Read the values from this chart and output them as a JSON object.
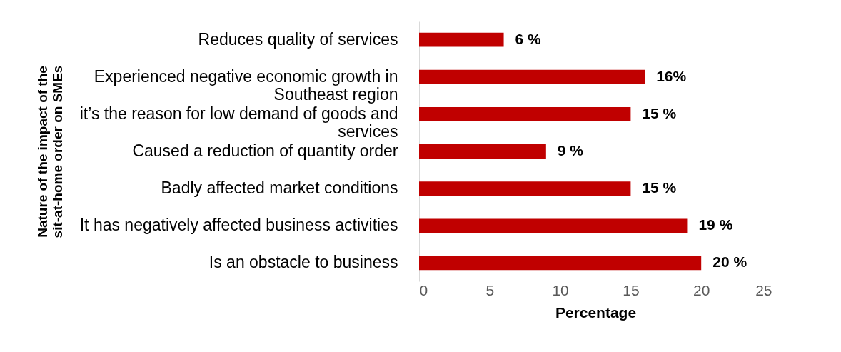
{
  "chart_data": {
    "type": "bar",
    "orientation": "horizontal",
    "ylabel": "Nature of the impact of the sit-at-home order on SMEs",
    "xlabel": "Percentage",
    "categories": [
      "Reduces quality of services",
      "Experienced negative economic growth in Southeast region",
      "it’s the reason for low demand of goods and services",
      "Caused a reduction of quantity order",
      "Badly affected market conditions",
      "It has negatively affected business activities",
      "Is an obstacle to business"
    ],
    "values": [
      6,
      16,
      15,
      9,
      15,
      19,
      20
    ],
    "value_labels": [
      "6 %",
      "16%",
      "15 %",
      "9 %",
      "15 %",
      "19 %",
      "20 %"
    ],
    "color": "#c00000",
    "xlim": [
      0,
      25
    ],
    "xticks": [
      0,
      5,
      10,
      15,
      20,
      25
    ],
    "grid": false
  }
}
